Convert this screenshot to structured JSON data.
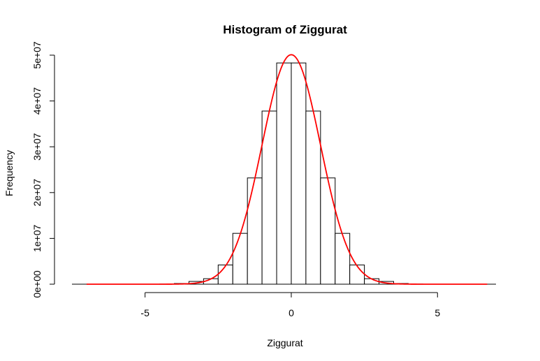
{
  "chart_data": {
    "type": "bar",
    "title": "Histogram of Ziggurat",
    "xlabel": "Ziggurat",
    "ylabel": "Frequency",
    "xlim": [
      -7.5,
      7.0
    ],
    "ylim": [
      0,
      50000000
    ],
    "x_ticks": [
      -5,
      0,
      5
    ],
    "x_tick_labels": [
      "-5",
      "0",
      "5"
    ],
    "y_ticks": [
      0,
      10000000,
      20000000,
      30000000,
      40000000,
      50000000
    ],
    "y_tick_labels": [
      "0e+00",
      "1e+07",
      "2e+07",
      "3e+07",
      "4e+07",
      "5e+07"
    ],
    "bin_edges": [
      -4.5,
      -4.0,
      -3.5,
      -3.0,
      -2.5,
      -2.0,
      -1.5,
      -1.0,
      -0.5,
      0.0,
      0.5,
      1.0,
      1.5,
      2.0,
      2.5,
      3.0,
      3.5,
      4.0,
      4.5
    ],
    "bin_counts": [
      30000,
      150000,
      600000,
      1200000,
      4200000,
      11100000,
      23200000,
      37800000,
      48300000,
      48300000,
      37800000,
      23200000,
      11100000,
      4200000,
      1200000,
      600000,
      150000,
      30000
    ],
    "curve": {
      "type": "line",
      "color": "#ff0000",
      "description": "scaled normal density",
      "x_range": [
        -7.0,
        6.7
      ],
      "peak": 50100000,
      "mean": 0,
      "sd": 1
    },
    "bar_fill": "#ffffff",
    "bar_stroke": "#000000",
    "grid": false,
    "legend": "none"
  }
}
